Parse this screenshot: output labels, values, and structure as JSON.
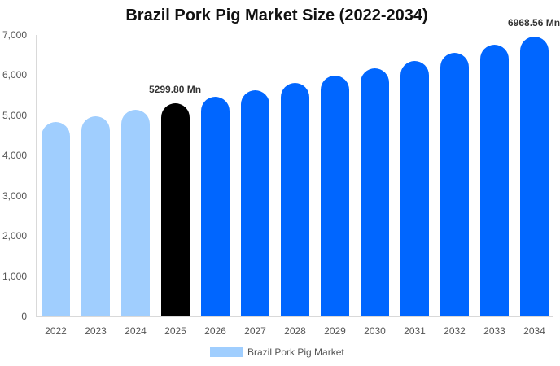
{
  "chart_data": {
    "type": "bar",
    "title": "Brazil Pork Pig Market Size (2022-2034)",
    "xlabel": "",
    "ylabel": "",
    "ylim": [
      0,
      7000
    ],
    "yticks": [
      "0",
      "1,000",
      "2,000",
      "3,000",
      "4,000",
      "5,000",
      "6,000",
      "7,000"
    ],
    "categories": [
      "2022",
      "2023",
      "2024",
      "2025",
      "2026",
      "2027",
      "2028",
      "2029",
      "2030",
      "2031",
      "2032",
      "2033",
      "2034"
    ],
    "series": [
      {
        "name": "Brazil Pork Pig Market",
        "values": [
          4838,
          4987,
          5141,
          5299.8,
          5464,
          5633,
          5807,
          5987,
          6172,
          6363,
          6560,
          6763,
          6968.56
        ]
      }
    ],
    "bar_colors": [
      "#a0cefe",
      "#a0cefe",
      "#a0cefe",
      "#000000",
      "#0066ff",
      "#0066ff",
      "#0066ff",
      "#0066ff",
      "#0066ff",
      "#0066ff",
      "#0066ff",
      "#0066ff",
      "#0066ff"
    ],
    "annotations": [
      {
        "category": "2025",
        "text": "5299.80 Mn"
      },
      {
        "category": "2034",
        "text": "6968.56 Mn"
      }
    ],
    "legend": {
      "position": "bottom",
      "entries": [
        "Brazil Pork Pig Market"
      ],
      "color": "#a0cefe"
    },
    "grid": false
  }
}
